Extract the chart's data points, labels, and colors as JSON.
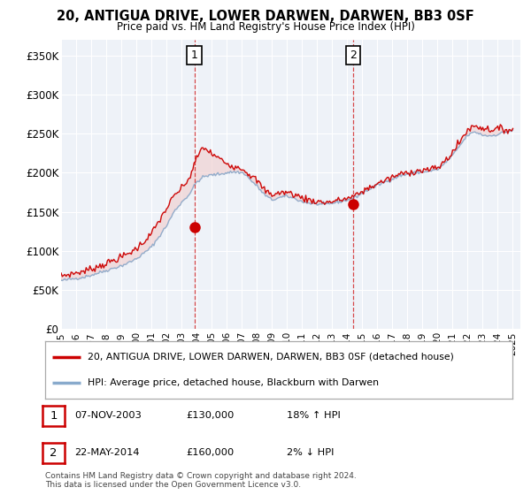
{
  "title": "20, ANTIGUA DRIVE, LOWER DARWEN, DARWEN, BB3 0SF",
  "subtitle": "Price paid vs. HM Land Registry's House Price Index (HPI)",
  "ylabel_ticks": [
    "£0",
    "£50K",
    "£100K",
    "£150K",
    "£200K",
    "£250K",
    "£300K",
    "£350K"
  ],
  "ytick_values": [
    0,
    50000,
    100000,
    150000,
    200000,
    250000,
    300000,
    350000
  ],
  "ylim": [
    0,
    370000
  ],
  "xlim_start": 1995.0,
  "xlim_end": 2025.5,
  "year_ticks": [
    1995,
    1996,
    1997,
    1998,
    1999,
    2000,
    2001,
    2002,
    2003,
    2004,
    2005,
    2006,
    2007,
    2008,
    2009,
    2010,
    2011,
    2012,
    2013,
    2014,
    2015,
    2016,
    2017,
    2018,
    2019,
    2020,
    2021,
    2022,
    2023,
    2024,
    2025
  ],
  "sale1_x": 2003.85,
  "sale1_y": 130000,
  "sale1_label": "1",
  "sale1_date": "07-NOV-2003",
  "sale1_price": "£130,000",
  "sale1_hpi": "18% ↑ HPI",
  "sale2_x": 2014.39,
  "sale2_y": 160000,
  "sale2_label": "2",
  "sale2_date": "22-MAY-2014",
  "sale2_price": "£160,000",
  "sale2_hpi": "2% ↓ HPI",
  "vline1_x": 2003.85,
  "vline2_x": 2014.39,
  "red_line_color": "#cc0000",
  "blue_line_color": "#88aacc",
  "blue_fill_color": "#ccddf0",
  "red_fill_color": "#f0cccc",
  "plot_bg_color": "#eef2f8",
  "legend_line1": "20, ANTIGUA DRIVE, LOWER DARWEN, DARWEN, BB3 0SF (detached house)",
  "legend_line2": "HPI: Average price, detached house, Blackburn with Darwen",
  "footer": "Contains HM Land Registry data © Crown copyright and database right 2024.\nThis data is licensed under the Open Government Licence v3.0.",
  "hpi_keypoints": [
    [
      1995.0,
      62000
    ],
    [
      1995.5,
      63500
    ],
    [
      1996.0,
      65000
    ],
    [
      1996.5,
      66500
    ],
    [
      1997.0,
      69000
    ],
    [
      1997.5,
      72000
    ],
    [
      1998.0,
      75000
    ],
    [
      1998.5,
      78000
    ],
    [
      1999.0,
      81000
    ],
    [
      1999.5,
      85000
    ],
    [
      2000.0,
      90000
    ],
    [
      2000.5,
      97000
    ],
    [
      2001.0,
      105000
    ],
    [
      2001.5,
      118000
    ],
    [
      2002.0,
      132000
    ],
    [
      2002.5,
      150000
    ],
    [
      2003.0,
      162000
    ],
    [
      2003.5,
      172000
    ],
    [
      2004.0,
      188000
    ],
    [
      2004.5,
      195000
    ],
    [
      2005.0,
      197000
    ],
    [
      2005.5,
      198000
    ],
    [
      2006.0,
      200000
    ],
    [
      2006.5,
      201000
    ],
    [
      2007.0,
      200000
    ],
    [
      2007.25,
      198000
    ],
    [
      2007.5,
      192000
    ],
    [
      2008.0,
      183000
    ],
    [
      2008.5,
      172000
    ],
    [
      2009.0,
      165000
    ],
    [
      2009.5,
      168000
    ],
    [
      2010.0,
      170000
    ],
    [
      2010.5,
      167000
    ],
    [
      2011.0,
      163000
    ],
    [
      2011.5,
      161000
    ],
    [
      2012.0,
      160000
    ],
    [
      2012.5,
      159000
    ],
    [
      2013.0,
      161000
    ],
    [
      2013.5,
      163000
    ],
    [
      2014.0,
      165000
    ],
    [
      2014.5,
      168000
    ],
    [
      2015.0,
      174000
    ],
    [
      2015.5,
      179000
    ],
    [
      2016.0,
      184000
    ],
    [
      2016.5,
      188000
    ],
    [
      2017.0,
      192000
    ],
    [
      2017.5,
      196000
    ],
    [
      2018.0,
      198000
    ],
    [
      2018.5,
      200000
    ],
    [
      2019.0,
      201000
    ],
    [
      2019.5,
      202000
    ],
    [
      2020.0,
      204000
    ],
    [
      2020.5,
      212000
    ],
    [
      2021.0,
      222000
    ],
    [
      2021.5,
      235000
    ],
    [
      2022.0,
      248000
    ],
    [
      2022.5,
      252000
    ],
    [
      2023.0,
      248000
    ],
    [
      2023.5,
      247000
    ],
    [
      2024.0,
      249000
    ],
    [
      2024.5,
      252000
    ],
    [
      2025.0,
      254000
    ]
  ],
  "red_keypoints": [
    [
      1995.0,
      68000
    ],
    [
      1995.5,
      70000
    ],
    [
      1996.0,
      72000
    ],
    [
      1996.5,
      74000
    ],
    [
      1997.0,
      77000
    ],
    [
      1997.5,
      80500
    ],
    [
      1998.0,
      84000
    ],
    [
      1998.5,
      88000
    ],
    [
      1999.0,
      92000
    ],
    [
      1999.5,
      97000
    ],
    [
      2000.0,
      103000
    ],
    [
      2000.5,
      112000
    ],
    [
      2001.0,
      122000
    ],
    [
      2001.5,
      138000
    ],
    [
      2002.0,
      154000
    ],
    [
      2002.5,
      170000
    ],
    [
      2003.0,
      180000
    ],
    [
      2003.5,
      192000
    ],
    [
      2004.0,
      218000
    ],
    [
      2004.25,
      228000
    ],
    [
      2004.5,
      232000
    ],
    [
      2005.0,
      224000
    ],
    [
      2005.5,
      218000
    ],
    [
      2006.0,
      212000
    ],
    [
      2006.5,
      208000
    ],
    [
      2007.0,
      206000
    ],
    [
      2007.25,
      202000
    ],
    [
      2007.5,
      198000
    ],
    [
      2008.0,
      190000
    ],
    [
      2008.5,
      178000
    ],
    [
      2009.0,
      172000
    ],
    [
      2009.5,
      174000
    ],
    [
      2010.0,
      175000
    ],
    [
      2010.5,
      172000
    ],
    [
      2011.0,
      168000
    ],
    [
      2011.5,
      165000
    ],
    [
      2012.0,
      163000
    ],
    [
      2012.5,
      162000
    ],
    [
      2013.0,
      163000
    ],
    [
      2013.5,
      165000
    ],
    [
      2014.0,
      167000
    ],
    [
      2014.5,
      170000
    ],
    [
      2015.0,
      176000
    ],
    [
      2015.5,
      181000
    ],
    [
      2016.0,
      186000
    ],
    [
      2016.5,
      190000
    ],
    [
      2017.0,
      194000
    ],
    [
      2017.5,
      198000
    ],
    [
      2018.0,
      200000
    ],
    [
      2018.5,
      202000
    ],
    [
      2019.0,
      203000
    ],
    [
      2019.5,
      204000
    ],
    [
      2020.0,
      206000
    ],
    [
      2020.5,
      215000
    ],
    [
      2021.0,
      226000
    ],
    [
      2021.5,
      240000
    ],
    [
      2022.0,
      255000
    ],
    [
      2022.5,
      260000
    ],
    [
      2023.0,
      257000
    ],
    [
      2023.5,
      255000
    ],
    [
      2024.0,
      256000
    ],
    [
      2024.5,
      255000
    ],
    [
      2025.0,
      255000
    ]
  ]
}
